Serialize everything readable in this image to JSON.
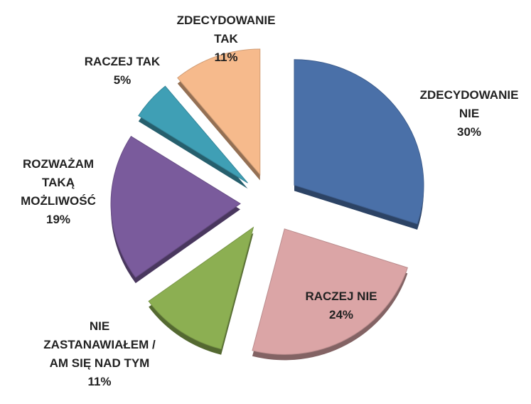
{
  "chart_data": {
    "type": "pie",
    "categories": [
      "ZDECYDOWANIE NIE",
      "RACZEJ NIE",
      "NIE ZASTANAWIAŁEM / AM SIĘ NAD TYM",
      "ROZWAŻAM TAKĄ MOŻLIWOŚĆ",
      "RACZEJ TAK",
      "ZDECYDOWANIE TAK"
    ],
    "values": [
      30,
      24,
      11,
      19,
      5,
      11
    ],
    "value_labels": [
      "30%",
      "24%",
      "11%",
      "19%",
      "5%",
      "11%"
    ],
    "colors": [
      "#4a70a8",
      "#dba5a6",
      "#8caf52",
      "#7a5b9c",
      "#3f9fb5",
      "#f6ba8c"
    ]
  }
}
